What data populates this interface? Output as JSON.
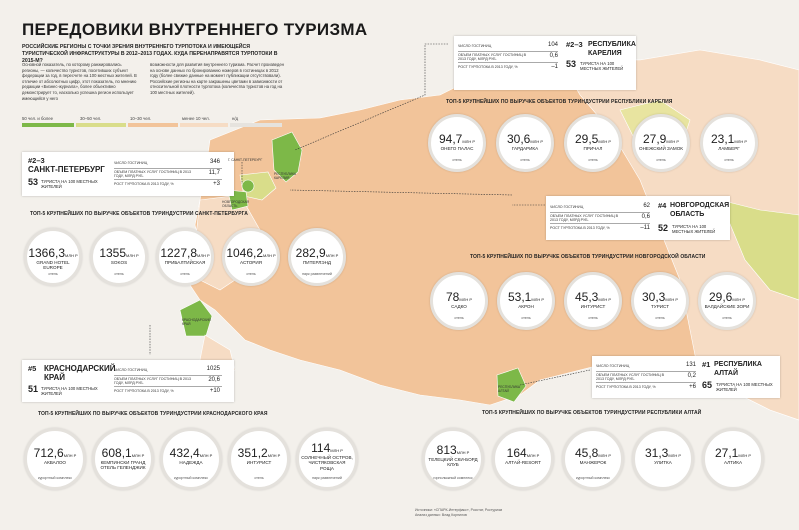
{
  "header": {
    "title": "ПЕРЕДОВИКИ ВНУТРЕННЕГО ТУРИЗМА",
    "subtitle": "РОССИЙСКИЕ РЕГИОНЫ С ТОЧКИ ЗРЕНИЯ ВНУТРЕННЕГО ТУРПОТОКА И ИМЕЮЩЕЙСЯ ТУРИСТИЧЕСКОЙ ИНФРАСТРУКТУРЫ В 2012–2013 ГОДАХ. КУДА ПЕРЕНАПРАВЯТСЯ ТУРПОТОКИ В 2015-М?",
    "intro_left": "Основной показатель, по которому ранжировались регионы, — количество туристов, посетивших субъект федерации за год, в пересчете на 100 местных жителей. В отличие от абсолютных цифр, этот показатель, по мнению редакции «Бизнес-журнала», более объективно демонстрирует то, насколько успешна регион использует имеющийся у него",
    "intro_right": "возможности для развития внутреннего туризма. Расчет произведен на основе данных по бронированию номеров в гостиницах в 2012 году (более свежие данные на момент публикации отсутствовали). Российские регионы на карте закрашены цветами в зависимости от относительной плотности турпотока (количества туристов на год на 100 местных жителей)."
  },
  "legend": [
    {
      "label": "50 чел. и более",
      "color": "#7db848"
    },
    {
      "label": "30–50 чел.",
      "color": "#d9dd8a"
    },
    {
      "label": "10–30 чел.",
      "color": "#f2c49a"
    },
    {
      "label": "менее 10 чел.",
      "color": "#f6dcc4"
    },
    {
      "label": "н/д",
      "color": "#e6e3de"
    }
  ],
  "stat_labels": {
    "hotels": "ЧИСЛО ГОСТИНИЦ",
    "services": "ОБЪЕМ ПЛАТНЫХ УСЛУГ ГОСТИНИЦ В 2013 ГОДУ, МЛРД РУБ.",
    "growth": "РОСТ ТУРПОТОКА В 2013 ГОДУ, %"
  },
  "tourists_suffix": "ТУРИСТА НА 100 МЕСТНЫХ ЖИТЕЛЕЙ",
  "type_hotel": "отель",
  "regions": {
    "karelia": {
      "rank": "#2–3",
      "name": "РЕСПУБЛИКА КАРЕЛИЯ",
      "tourists": "53",
      "hotels": "104",
      "services": "0,6",
      "growth": "–1"
    },
    "spb": {
      "rank": "#2–3",
      "name": "САНКТ-ПЕТЕРБУРГ",
      "tourists": "53",
      "hotels": "346",
      "services": "11,7",
      "growth": "+3"
    },
    "novgorod": {
      "rank": "#4",
      "name": "НОВГОРОДСКАЯ ОБЛАСТЬ",
      "tourists": "52",
      "hotels": "62",
      "services": "0,6",
      "growth": "–11"
    },
    "krasnodar": {
      "rank": "#5",
      "name": "КРАСНОДАРСКИЙ КРАЙ",
      "tourists": "51",
      "hotels": "1025",
      "services": "20,6",
      "growth": "+10"
    },
    "altai": {
      "rank": "#1",
      "name": "РЕСПУБЛИКА АЛТАЙ",
      "tourists": "65",
      "hotels": "131",
      "services": "0,2",
      "growth": "+6"
    }
  },
  "sections": {
    "karelia": {
      "title": "ТОП-5 КРУПНЕЙШИХ ПО ВЫРУЧКЕ ОБЪЕКТОВ ТУРИНДУСТРИИ РЕСПУБЛИКИ КАРЕЛИЯ",
      "items": [
        {
          "value": "94,7",
          "unit": "МЛН Р",
          "name": "ОНЕГО ПАЛАС",
          "type": "отель"
        },
        {
          "value": "30,6",
          "unit": "МЛН Р",
          "name": "ГАРДАРИКА",
          "type": "отель"
        },
        {
          "value": "29,5",
          "unit": "МЛН Р",
          "name": "ПРИЧАЛ",
          "type": "отель"
        },
        {
          "value": "27,9",
          "unit": "МЛН Р",
          "name": "ОНЕЖСКИЙ ЗАМОК",
          "type": "отель"
        },
        {
          "value": "23,1",
          "unit": "МЛН Р",
          "name": "ЛАМБЕРГ",
          "type": "отель"
        }
      ]
    },
    "spb": {
      "title": "ТОП-5 КРУПНЕЙШИХ ПО ВЫРУЧКЕ ОБЪЕКТОВ ТУРИНДУСТРИИ САНКТ-ПЕТЕРБУРГА",
      "items": [
        {
          "value": "1366,3",
          "unit": "МЛН Р",
          "name": "GRAND HOTEL EUROPE",
          "type": "отель"
        },
        {
          "value": "1355",
          "unit": "МЛН Р",
          "name": "SOKOS",
          "type": "отель"
        },
        {
          "value": "1227,8",
          "unit": "МЛН Р",
          "name": "ПРИБАЛТИЙСКАЯ",
          "type": "отель"
        },
        {
          "value": "1046,2",
          "unit": "МЛН Р",
          "name": "АСТОРИЯ",
          "type": "отель"
        },
        {
          "value": "282,9",
          "unit": "МЛН Р",
          "name": "ПИТЕРЛЭНД",
          "type": "парк развлечений"
        }
      ]
    },
    "novgorod": {
      "title": "ТОП-5 КРУПНЕЙШИХ ПО ВЫРУЧКЕ ОБЪЕКТОВ ТУРИНДУСТРИИ НОВГОРОДСКОЙ ОБЛАСТИ",
      "items": [
        {
          "value": "78",
          "unit": "МЛН Р",
          "name": "САДКО",
          "type": "отель"
        },
        {
          "value": "53,1",
          "unit": "МЛН Р",
          "name": "АКРОН",
          "type": "отель"
        },
        {
          "value": "45,3",
          "unit": "МЛН Р",
          "name": "ИНТУРИСТ",
          "type": "отель"
        },
        {
          "value": "30,3",
          "unit": "МЛН Р",
          "name": "ТУРИСТ",
          "type": "отель"
        },
        {
          "value": "29,6",
          "unit": "МЛН Р",
          "name": "ВАЛДАЙСКИЕ ЗОРИ",
          "type": "отель"
        }
      ]
    },
    "krasnodar": {
      "title": "ТОП-5 КРУПНЕЙШИХ ПО ВЫРУЧКЕ ОБЪЕКТОВ ТУРИНДУСТРИИ КРАСНОДАРСКОГО КРАЯ",
      "items": [
        {
          "value": "712,6",
          "unit": "МЛН Р",
          "name": "АКВАЛОО",
          "type": "курортный комплекс"
        },
        {
          "value": "608,1",
          "unit": "МЛН Р",
          "name": "КЕМПИНСКИ ГРАНД ОТЕЛЬ ГЕЛЕНДЖИК",
          "type": ""
        },
        {
          "value": "432,4",
          "unit": "МЛН Р",
          "name": "НАДЕЖДА",
          "type": "курортный комплекс"
        },
        {
          "value": "351,2",
          "unit": "МЛН Р",
          "name": "ИНТУРИСТ",
          "type": "отель"
        },
        {
          "value": "114",
          "unit": "МЛН Р",
          "name": "СОЛНЕЧНЫЙ ОСТРОВ, ЧИСТЯКОВСКАЯ РОЩА",
          "type": "парк развлечений"
        }
      ]
    },
    "altai": {
      "title": "ТОП-5 КРУПНЕЙШИХ ПО ВЫРУЧКЕ ОБЪЕКТОВ ТУРИНДУСТРИИ РЕСПУБЛИКИ АЛТАЙ",
      "items": [
        {
          "value": "813",
          "unit": "МЛН Р",
          "name": "ТЕЛЕЦКИЙ СКИ-БОРД КЛУБ",
          "type": "горнолыжный комплекс"
        },
        {
          "value": "164",
          "unit": "МЛН Р",
          "name": "АЛТАЙ-RESORT",
          "type": ""
        },
        {
          "value": "45,8",
          "unit": "МЛН Р",
          "name": "МАНЖЕРОК",
          "type": "курортный комплекс"
        },
        {
          "value": "31,3",
          "unit": "МЛН Р",
          "name": "УЛИТКА",
          "type": ""
        },
        {
          "value": "27,1",
          "unit": "МЛН Р",
          "name": "АЛТИКА",
          "type": ""
        }
      ]
    }
  },
  "map_labels": {
    "spb_short": "Г. САНКТ-ПЕТЕРБУРГ",
    "karelia_map": "РЕСПУБЛИКА КАРЕЛИЯ",
    "novgorod_map": "НОВГОРОДСКАЯ ОБЛАСТЬ",
    "krasnodar_map": "КРАСНОДАРСКИЙ КРАЙ",
    "altai_map": "РЕСПУБЛИКА АЛТАЙ"
  },
  "source": {
    "line1": "Источники: «СПАРК-Интерфакс», Росстат, Ростуризм",
    "line2": "Анализ данных: Влад Корнилов"
  }
}
